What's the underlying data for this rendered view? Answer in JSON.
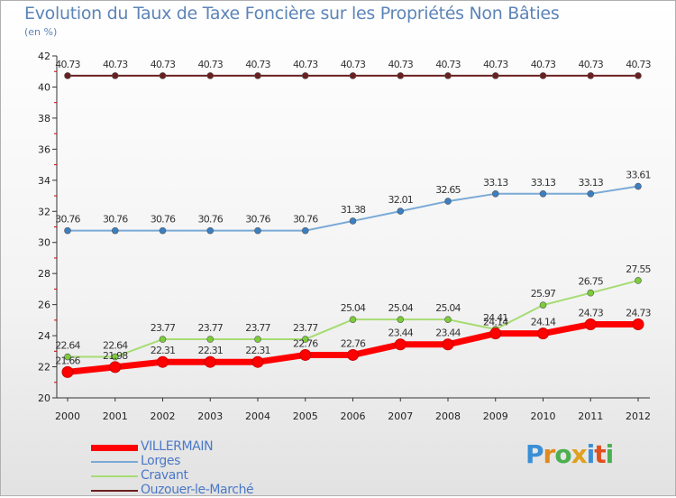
{
  "title": "Evolution du Taux de Taxe Foncière sur les Propriétés Non Bâties",
  "unit": "(en %)",
  "logo": {
    "text": "Proxiti",
    "colors": [
      "#3a8fd6",
      "#e08a1e",
      "#4caf50",
      "#e0a020",
      "#3a8fd6",
      "#e05020",
      "#4caf50"
    ]
  },
  "chart_data": {
    "type": "line",
    "x": [
      "2000",
      "2001",
      "2002",
      "2003",
      "2004",
      "2005",
      "2006",
      "2007",
      "2008",
      "2009",
      "2010",
      "2011",
      "2012"
    ],
    "ylim": [
      20,
      42
    ],
    "yticks": [
      20,
      22,
      24,
      26,
      28,
      30,
      32,
      34,
      36,
      38,
      40,
      42
    ],
    "grid": false,
    "legend": "bottom-left",
    "series": [
      {
        "name": "Ouzouer-le-Marché",
        "color": "#6b1f1f",
        "marker": "#6b1f1f",
        "values": [
          40.73,
          40.73,
          40.73,
          40.73,
          40.73,
          40.73,
          40.73,
          40.73,
          40.73,
          40.73,
          40.73,
          40.73,
          40.73
        ],
        "labels": [
          "40.73",
          "40.73",
          "40.73",
          "40.73",
          "40.73",
          "40.73",
          "40.73",
          "40.73",
          "40.73",
          "40.73",
          "40.73",
          "40.73",
          "40.73"
        ]
      },
      {
        "name": "Lorges",
        "color": "#7aaad6",
        "marker": "#3b7fc2",
        "values": [
          30.76,
          30.76,
          30.76,
          30.76,
          30.76,
          30.76,
          31.38,
          32.01,
          32.65,
          33.13,
          33.13,
          33.13,
          33.61
        ],
        "labels": [
          "30.76",
          "30.76",
          "30.76",
          "30.76",
          "30.76",
          "30.76",
          "31.38",
          "32.01",
          "32.65",
          "33.13",
          "33.13",
          "33.13",
          "33.61"
        ]
      },
      {
        "name": "Cravant",
        "color": "#a6dc73",
        "marker": "#7ccc3a",
        "values": [
          22.64,
          22.64,
          23.77,
          23.77,
          23.77,
          23.77,
          25.04,
          25.04,
          25.04,
          24.41,
          25.97,
          26.75,
          27.55
        ],
        "labels": [
          "22.64",
          "22.64",
          "23.77",
          "23.77",
          "23.77",
          "23.77",
          "25.04",
          "25.04",
          "25.04",
          "24.41",
          "25.97",
          "26.75",
          "27.55"
        ]
      },
      {
        "name": "VILLERMAIN",
        "color": "#ff0000",
        "marker": "#ff0000",
        "values": [
          21.66,
          21.98,
          22.31,
          22.31,
          22.31,
          22.76,
          22.76,
          23.44,
          23.44,
          24.14,
          24.14,
          24.73,
          24.73
        ],
        "labels": [
          "21.66",
          "21.98",
          "22.31",
          "22.31",
          "22.31",
          "22.76",
          "22.76",
          "23.44",
          "23.44",
          "24.14",
          "24.14",
          "24.73",
          "24.73"
        ]
      }
    ],
    "legend_order": [
      "VILLERMAIN",
      "Lorges",
      "Cravant",
      "Ouzouer-le-Marché"
    ]
  }
}
